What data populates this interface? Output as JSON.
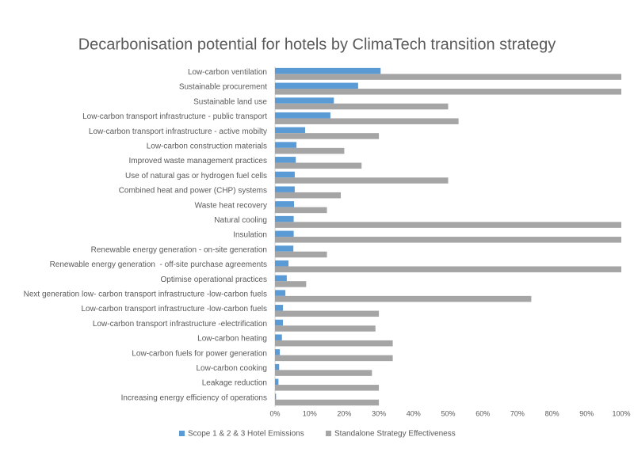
{
  "chart_data": {
    "type": "hbar",
    "title": "Decarbonisation potential for hotels by ClimaTech transition strategy",
    "categories": [
      "Low-carbon ventilation",
      "Sustainable procurement",
      "Sustainable land use",
      "Low-carbon transport infrastructure - public transport",
      "Low-carbon transport infrastructure - active mobilty",
      "Low-carbon construction materials",
      "Improved waste management practices",
      "Use of natural gas or hydrogen fuel cells",
      "Combined heat and power (CHP) systems",
      "Waste heat recovery",
      "Natural cooling",
      "Insulation",
      "Renewable energy generation - on-site generation",
      "Renewable energy generation  - off-site purchase agreements",
      "Optimise operational practices",
      "Next generation low- carbon transport infrastructure -low-carbon fuels",
      "Low-carbon transport infrastructure -low-carbon fuels",
      "Low-carbon transport infrastructure -electrification",
      "Low-carbon heating",
      "Low-carbon fuels for power generation",
      "Low-carbon cooking",
      "Leakage reduction",
      "Increasing energy efficiency of operations"
    ],
    "series": [
      {
        "name": "Scope 1 & 2 & 3 Hotel Emissions",
        "color": "#5b9bd5",
        "values": [
          30.5,
          24,
          17,
          16,
          8.7,
          6.2,
          6,
          5.7,
          5.7,
          5.5,
          5.4,
          5.4,
          5.3,
          3.9,
          3.4,
          3,
          2.3,
          2.3,
          2,
          1.4,
          1.2,
          1,
          0.3
        ]
      },
      {
        "name": "Standalone Strategy Effectiveness",
        "color": "#a5a5a5",
        "values": [
          100,
          100,
          50,
          53,
          30,
          20,
          25,
          50,
          19,
          15,
          100,
          100,
          15,
          100,
          9,
          74,
          30,
          29,
          34,
          34,
          28,
          30,
          30
        ]
      }
    ],
    "xlim": [
      0,
      100
    ],
    "xticks": [
      {
        "value": 0,
        "label": "0%"
      },
      {
        "value": 10,
        "label": "10%"
      },
      {
        "value": 20,
        "label": "20%"
      },
      {
        "value": 30,
        "label": "30%"
      },
      {
        "value": 40,
        "label": "40%"
      },
      {
        "value": 50,
        "label": "50%"
      },
      {
        "value": 60,
        "label": "60%"
      },
      {
        "value": 70,
        "label": "70%"
      },
      {
        "value": 80,
        "label": "80%"
      },
      {
        "value": 90,
        "label": "90%"
      },
      {
        "value": 100,
        "label": "100%"
      }
    ],
    "grid": false
  }
}
